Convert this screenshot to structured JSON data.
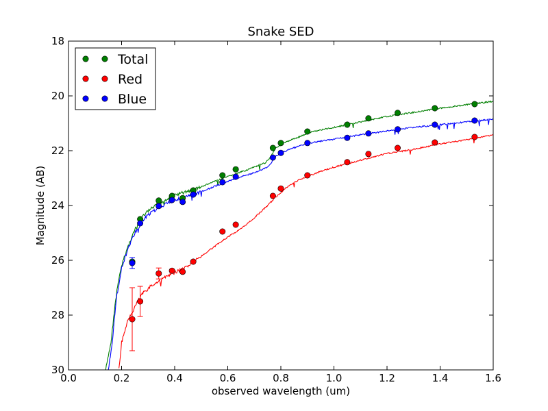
{
  "chart_data": {
    "type": "scatter",
    "title": "Snake SED",
    "xlabel": "observed wavelength (um)",
    "ylabel": "Magnitude (AB)",
    "xlim": [
      0.0,
      1.6
    ],
    "ylim": [
      18,
      30
    ],
    "y_inverted": true,
    "grid": false,
    "legend_position": "top-left",
    "xticks": [
      "0.0",
      "0.2",
      "0.4",
      "0.6",
      "0.8",
      "1.0",
      "1.2",
      "1.4",
      "1.6"
    ],
    "yticks": [
      "18",
      "20",
      "22",
      "24",
      "26",
      "28",
      "30"
    ],
    "series": [
      {
        "name": "Total",
        "color": "#007f00",
        "points": [
          {
            "x": 0.24,
            "y": 26.05,
            "err": 0.0
          },
          {
            "x": 0.27,
            "y": 24.5,
            "err": 0.0
          },
          {
            "x": 0.34,
            "y": 23.82,
            "err": 0.0
          },
          {
            "x": 0.39,
            "y": 23.65,
            "err": 0.0
          },
          {
            "x": 0.43,
            "y": 23.73,
            "err": 0.0
          },
          {
            "x": 0.47,
            "y": 23.45,
            "err": 0.0
          },
          {
            "x": 0.58,
            "y": 22.9,
            "err": 0.0
          },
          {
            "x": 0.63,
            "y": 22.68,
            "err": 0.0
          },
          {
            "x": 0.77,
            "y": 21.9,
            "err": 0.0
          },
          {
            "x": 0.8,
            "y": 21.72,
            "err": 0.0
          },
          {
            "x": 0.9,
            "y": 21.3,
            "err": 0.0
          },
          {
            "x": 1.05,
            "y": 21.05,
            "err": 0.0
          },
          {
            "x": 1.13,
            "y": 20.82,
            "err": 0.0
          },
          {
            "x": 1.24,
            "y": 20.62,
            "err": 0.0
          },
          {
            "x": 1.38,
            "y": 20.45,
            "err": 0.0
          },
          {
            "x": 1.53,
            "y": 20.3,
            "err": 0.0
          }
        ],
        "sed": [
          [
            0.14,
            30.0
          ],
          [
            0.16,
            29.0
          ],
          [
            0.18,
            27.2
          ],
          [
            0.2,
            26.2
          ],
          [
            0.22,
            25.6
          ],
          [
            0.24,
            25.1
          ],
          [
            0.26,
            24.7
          ],
          [
            0.28,
            24.4
          ],
          [
            0.3,
            24.2
          ],
          [
            0.33,
            24.0
          ],
          [
            0.36,
            23.82
          ],
          [
            0.4,
            23.62
          ],
          [
            0.45,
            23.48
          ],
          [
            0.5,
            23.32
          ],
          [
            0.55,
            23.12
          ],
          [
            0.6,
            22.95
          ],
          [
            0.65,
            22.78
          ],
          [
            0.7,
            22.6
          ],
          [
            0.74,
            22.45
          ],
          [
            0.76,
            22.25
          ],
          [
            0.78,
            21.9
          ],
          [
            0.8,
            21.78
          ],
          [
            0.84,
            21.6
          ],
          [
            0.88,
            21.45
          ],
          [
            0.92,
            21.3
          ],
          [
            1.0,
            21.15
          ],
          [
            1.1,
            20.95
          ],
          [
            1.2,
            20.75
          ],
          [
            1.3,
            20.6
          ],
          [
            1.4,
            20.45
          ],
          [
            1.5,
            20.32
          ],
          [
            1.6,
            20.2
          ]
        ]
      },
      {
        "name": "Red",
        "color": "#ff0000",
        "points": [
          {
            "x": 0.24,
            "y": 28.15,
            "err": 1.15
          },
          {
            "x": 0.27,
            "y": 27.5,
            "err": 0.55
          },
          {
            "x": 0.34,
            "y": 26.48,
            "err": 0.2
          },
          {
            "x": 0.39,
            "y": 26.38,
            "err": 0.0
          },
          {
            "x": 0.43,
            "y": 26.42,
            "err": 0.0
          },
          {
            "x": 0.47,
            "y": 26.05,
            "err": 0.0
          },
          {
            "x": 0.58,
            "y": 24.95,
            "err": 0.0
          },
          {
            "x": 0.63,
            "y": 24.7,
            "err": 0.0
          },
          {
            "x": 0.77,
            "y": 23.65,
            "err": 0.0
          },
          {
            "x": 0.8,
            "y": 23.38,
            "err": 0.0
          },
          {
            "x": 0.9,
            "y": 22.9,
            "err": 0.0
          },
          {
            "x": 1.05,
            "y": 22.42,
            "err": 0.0
          },
          {
            "x": 1.13,
            "y": 22.12,
            "err": 0.0
          },
          {
            "x": 1.24,
            "y": 21.9,
            "err": 0.0
          },
          {
            "x": 1.38,
            "y": 21.7,
            "err": 0.0
          },
          {
            "x": 1.53,
            "y": 21.5,
            "err": 0.0
          }
        ],
        "sed": [
          [
            0.19,
            30.0
          ],
          [
            0.2,
            29.0
          ],
          [
            0.22,
            28.3
          ],
          [
            0.24,
            27.9
          ],
          [
            0.26,
            27.5
          ],
          [
            0.28,
            27.2
          ],
          [
            0.31,
            26.95
          ],
          [
            0.35,
            26.7
          ],
          [
            0.4,
            26.45
          ],
          [
            0.45,
            26.2
          ],
          [
            0.5,
            25.85
          ],
          [
            0.55,
            25.5
          ],
          [
            0.6,
            25.15
          ],
          [
            0.65,
            24.85
          ],
          [
            0.7,
            24.45
          ],
          [
            0.75,
            24.0
          ],
          [
            0.78,
            23.7
          ],
          [
            0.82,
            23.35
          ],
          [
            0.86,
            23.1
          ],
          [
            0.9,
            22.95
          ],
          [
            0.95,
            22.75
          ],
          [
            1.0,
            22.6
          ],
          [
            1.1,
            22.35
          ],
          [
            1.2,
            22.1
          ],
          [
            1.3,
            21.95
          ],
          [
            1.4,
            21.75
          ],
          [
            1.5,
            21.6
          ],
          [
            1.6,
            21.42
          ]
        ]
      },
      {
        "name": "Blue",
        "color": "#0000ff",
        "points": [
          {
            "x": 0.24,
            "y": 26.1,
            "err": 0.2
          },
          {
            "x": 0.27,
            "y": 24.65,
            "err": 0.0
          },
          {
            "x": 0.34,
            "y": 24.02,
            "err": 0.0
          },
          {
            "x": 0.39,
            "y": 23.8,
            "err": 0.0
          },
          {
            "x": 0.43,
            "y": 23.87,
            "err": 0.0
          },
          {
            "x": 0.47,
            "y": 23.6,
            "err": 0.0
          },
          {
            "x": 0.58,
            "y": 23.15,
            "err": 0.0
          },
          {
            "x": 0.63,
            "y": 22.95,
            "err": 0.0
          },
          {
            "x": 0.77,
            "y": 22.25,
            "err": 0.0
          },
          {
            "x": 0.8,
            "y": 22.08,
            "err": 0.0
          },
          {
            "x": 0.9,
            "y": 21.72,
            "err": 0.0
          },
          {
            "x": 1.05,
            "y": 21.53,
            "err": 0.0
          },
          {
            "x": 1.13,
            "y": 21.37,
            "err": 0.0
          },
          {
            "x": 1.24,
            "y": 21.22,
            "err": 0.0
          },
          {
            "x": 1.38,
            "y": 21.05,
            "err": 0.0
          },
          {
            "x": 1.53,
            "y": 20.9,
            "err": 0.0
          }
        ],
        "sed": [
          [
            0.15,
            30.0
          ],
          [
            0.165,
            29.0
          ],
          [
            0.18,
            27.4
          ],
          [
            0.2,
            26.3
          ],
          [
            0.22,
            25.7
          ],
          [
            0.24,
            25.2
          ],
          [
            0.26,
            24.85
          ],
          [
            0.28,
            24.55
          ],
          [
            0.3,
            24.35
          ],
          [
            0.33,
            24.15
          ],
          [
            0.36,
            23.98
          ],
          [
            0.4,
            23.8
          ],
          [
            0.45,
            23.65
          ],
          [
            0.5,
            23.5
          ],
          [
            0.55,
            23.3
          ],
          [
            0.6,
            23.12
          ],
          [
            0.65,
            22.95
          ],
          [
            0.7,
            22.8
          ],
          [
            0.74,
            22.65
          ],
          [
            0.76,
            22.5
          ],
          [
            0.78,
            22.2
          ],
          [
            0.8,
            22.1
          ],
          [
            0.84,
            21.92
          ],
          [
            0.88,
            21.8
          ],
          [
            0.92,
            21.7
          ],
          [
            1.0,
            21.58
          ],
          [
            1.1,
            21.42
          ],
          [
            1.2,
            21.28
          ],
          [
            1.3,
            21.15
          ],
          [
            1.4,
            21.05
          ],
          [
            1.5,
            20.95
          ],
          [
            1.6,
            20.85
          ]
        ]
      }
    ]
  }
}
